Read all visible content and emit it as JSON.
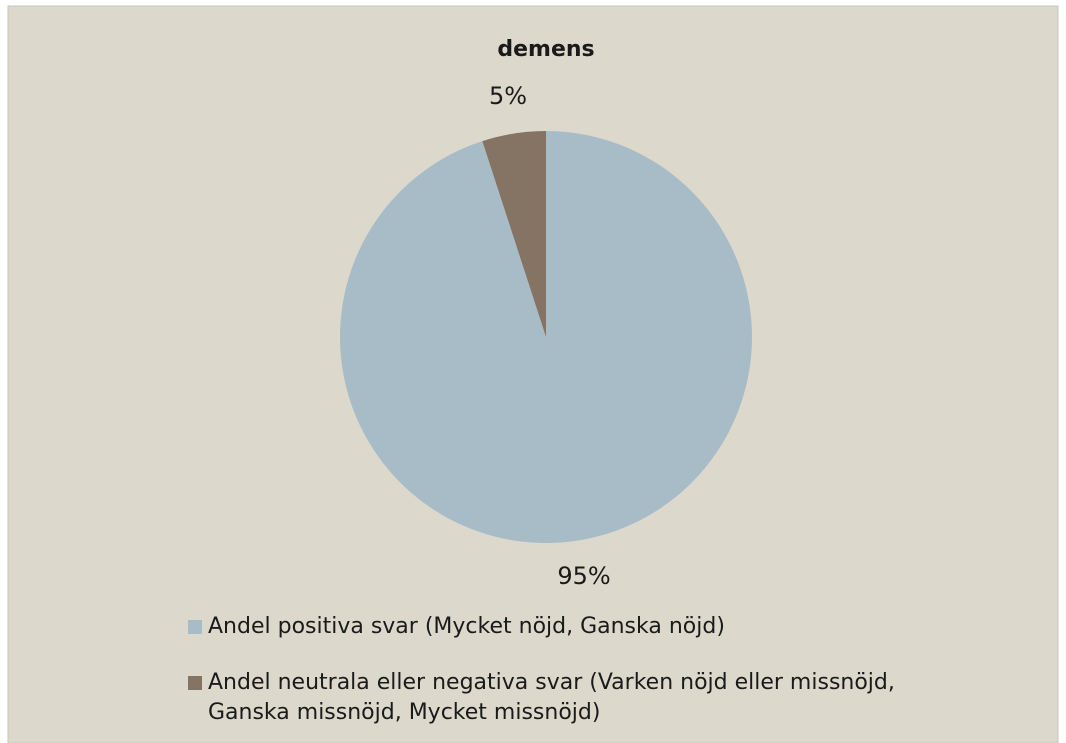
{
  "chart_data": {
    "type": "pie",
    "title": "demens",
    "categories": [
      "Andel positiva svar (Mycket nöjd, Ganska nöjd)",
      "Andel neutrala eller negativa svar (Varken nöjd eller missnöjd, Ganska missnöjd, Mycket missnöjd)"
    ],
    "values": [
      95,
      5
    ],
    "value_labels": [
      "95%",
      "5%"
    ],
    "colors": [
      "#a8bcc8",
      "#857363"
    ],
    "legend": "bottom"
  }
}
